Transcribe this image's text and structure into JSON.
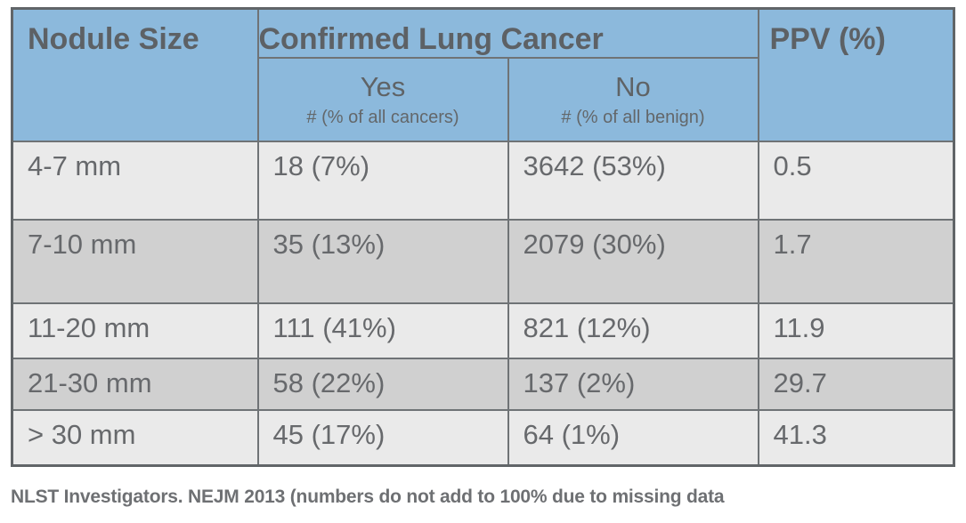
{
  "table": {
    "header": {
      "col_nodule_size": "Nodule Size",
      "col_confirmed": "Confirmed Lung Cancer",
      "col_ppv": "PPV (%)",
      "sub_yes": "Yes",
      "sub_yes_note": "# (% of all cancers)",
      "sub_no": "No",
      "sub_no_note": "# (% of all benign)"
    },
    "rows": [
      {
        "size": "4-7 mm",
        "yes": "18 (7%)",
        "no": "3642 (53%)",
        "ppv": "0.5"
      },
      {
        "size": "7-10 mm",
        "yes": "35 (13%)",
        "no": "2079 (30%)",
        "ppv": "1.7"
      },
      {
        "size": "11-20 mm",
        "yes": "111 (41%)",
        "no": "821 (12%)",
        "ppv": "11.9"
      },
      {
        "size": "21-30 mm",
        "yes": "58 (22%)",
        "no": "137 (2%)",
        "ppv": "29.7"
      },
      {
        "size": "> 30 mm",
        "yes": "45 (17%)",
        "no": "64 (1%)",
        "ppv": "41.3"
      }
    ]
  },
  "footnote": "NLST Investigators. NEJM 2013 (numbers do not add to 100% due to missing data",
  "colors": {
    "header_blue": "#8cb9dc",
    "row_light": "#eaeaea",
    "row_dark": "#d0d0d0",
    "border_gray": "#6f7376",
    "text_gray": "#67696c"
  },
  "chart_data": {
    "type": "table",
    "title": "",
    "columns": [
      "Nodule Size",
      "Confirmed Lung Cancer - Yes # (% of all cancers)",
      "Confirmed Lung Cancer - No # (% of all benign)",
      "PPV (%)"
    ],
    "rows": [
      {
        "nodule_size": "4-7 mm",
        "cancer_yes_n": 18,
        "cancer_yes_pct": 7,
        "cancer_no_n": 3642,
        "cancer_no_pct": 53,
        "ppv_pct": 0.5
      },
      {
        "nodule_size": "7-10 mm",
        "cancer_yes_n": 35,
        "cancer_yes_pct": 13,
        "cancer_no_n": 2079,
        "cancer_no_pct": 30,
        "ppv_pct": 1.7
      },
      {
        "nodule_size": "11-20 mm",
        "cancer_yes_n": 111,
        "cancer_yes_pct": 41,
        "cancer_no_n": 821,
        "cancer_no_pct": 12,
        "ppv_pct": 11.9
      },
      {
        "nodule_size": "21-30 mm",
        "cancer_yes_n": 58,
        "cancer_yes_pct": 22,
        "cancer_no_n": 137,
        "cancer_no_pct": 2,
        "ppv_pct": 29.7
      },
      {
        "nodule_size": "> 30 mm",
        "cancer_yes_n": 45,
        "cancer_yes_pct": 17,
        "cancer_no_n": 64,
        "cancer_no_pct": 1,
        "ppv_pct": 41.3
      }
    ],
    "source_note": "NLST Investigators. NEJM 2013 (numbers do not add to 100% due to missing data"
  }
}
